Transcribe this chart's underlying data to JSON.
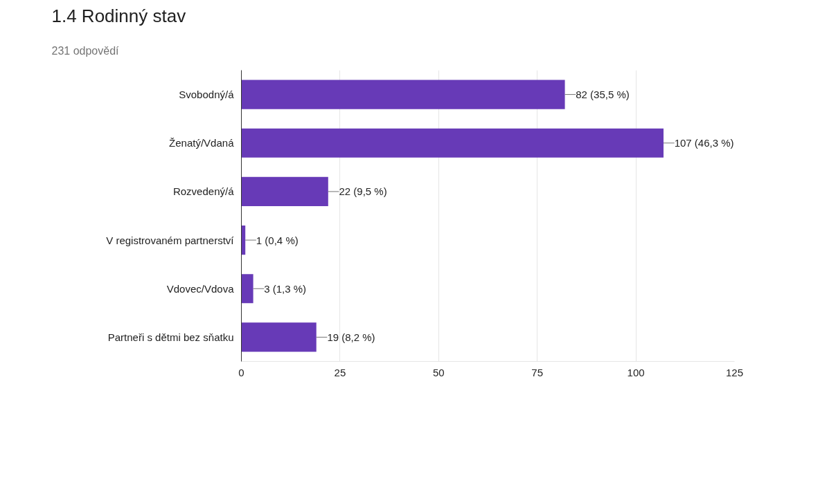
{
  "chart_data": {
    "type": "bar",
    "orientation": "horizontal",
    "title": "1.4 Rodinný stav",
    "subtitle": "231 odpovědí",
    "categories": [
      "Svobodný/á",
      "Ženatý/Vdaná",
      "Rozvedený/á",
      "V registrovaném partnerství",
      "Vdovec/Vdova",
      "Partneři s dětmi bez sňatku"
    ],
    "values": [
      82,
      107,
      22,
      1,
      3,
      19
    ],
    "value_labels": [
      "82 (35,5 %)",
      "107 (46,3 %)",
      "22 (9,5 %)",
      "1 (0,4 %)",
      "3 (1,3 %)",
      "19 (8,2 %)"
    ],
    "color": "#673ab7",
    "xlim": [
      0,
      125
    ],
    "xticks": [
      0,
      25,
      50,
      75,
      100,
      125
    ],
    "grid": "x"
  }
}
